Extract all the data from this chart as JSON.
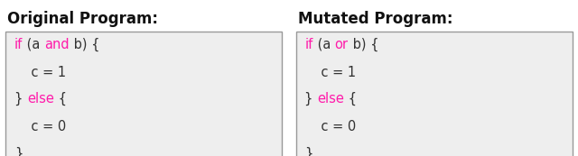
{
  "title_left": "Original Program:",
  "title_right": "Mutated Program:",
  "title_fontsize": 12,
  "title_fontweight": "bold",
  "box_bg_color": "#eeeeee",
  "box_border_color": "#999999",
  "keyword_color": "#ff1aaa",
  "normal_color": "#333333",
  "code_fontsize": 10.5,
  "fig_bg_color": "#ffffff",
  "left_lines": [
    [
      {
        "text": "if",
        "kw": true
      },
      {
        "text": " (a ",
        "kw": false
      },
      {
        "text": "and",
        "kw": true
      },
      {
        "text": " b) {",
        "kw": false
      }
    ],
    [
      {
        "text": "    c = 1",
        "kw": false
      }
    ],
    [
      {
        "text": "} ",
        "kw": false
      },
      {
        "text": "else",
        "kw": true
      },
      {
        "text": " {",
        "kw": false
      }
    ],
    [
      {
        "text": "    c = 0",
        "kw": false
      }
    ],
    [
      {
        "text": "}",
        "kw": false
      }
    ]
  ],
  "right_lines": [
    [
      {
        "text": "if",
        "kw": true
      },
      {
        "text": " (a ",
        "kw": false
      },
      {
        "text": "or",
        "kw": true
      },
      {
        "text": " b) {",
        "kw": false
      }
    ],
    [
      {
        "text": "    c = 1",
        "kw": false
      }
    ],
    [
      {
        "text": "} ",
        "kw": false
      },
      {
        "text": "else",
        "kw": true
      },
      {
        "text": " {",
        "kw": false
      }
    ],
    [
      {
        "text": "    c = 0",
        "kw": false
      }
    ],
    [
      {
        "text": "}",
        "kw": false
      }
    ]
  ]
}
